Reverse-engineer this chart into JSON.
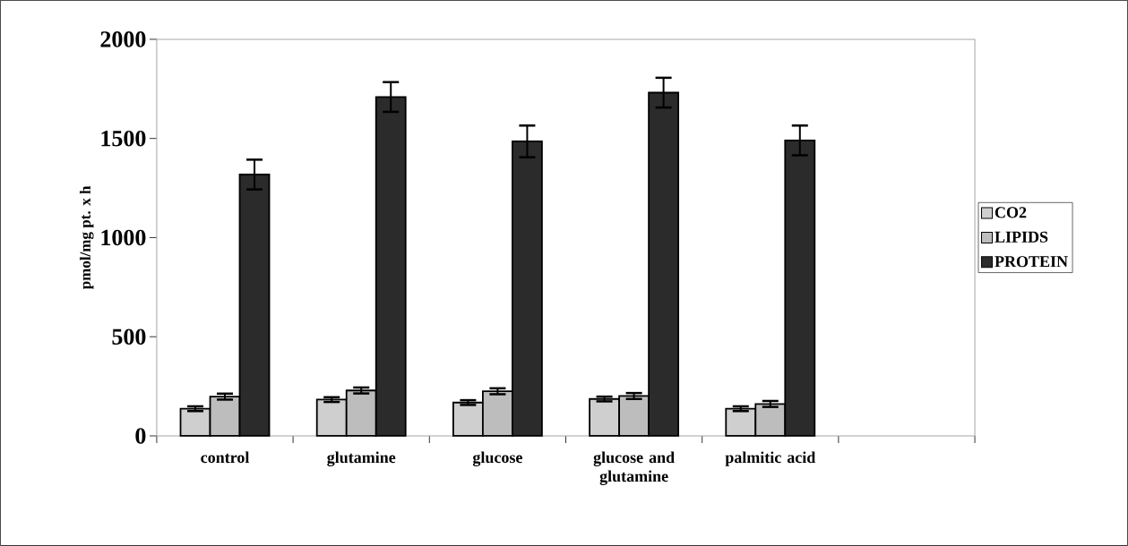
{
  "chart_data": {
    "type": "bar",
    "ylabel": "pmol/mg pt. x h",
    "categories": [
      "control",
      "glutamine",
      "glucose",
      "glucose and glutamine",
      "palmitic acid",
      null
    ],
    "series": [
      {
        "name": "CO2",
        "color": "#cfcfcf",
        "values": [
          137,
          183,
          168,
          186,
          137,
          null
        ],
        "errors": [
          12,
          12,
          12,
          12,
          12,
          null
        ]
      },
      {
        "name": "LIPIDS",
        "color": "#bdbdbd",
        "values": [
          198,
          229,
          225,
          201,
          161,
          null
        ],
        "errors": [
          15,
          15,
          15,
          15,
          15,
          null
        ]
      },
      {
        "name": "PROTEIN",
        "color": "#2b2b2b",
        "values": [
          1318,
          1709,
          1485,
          1731,
          1490,
          null
        ],
        "errors": [
          75,
          75,
          80,
          75,
          75,
          null
        ]
      }
    ],
    "ylim": [
      0,
      2000
    ],
    "yticks": [
      0,
      500,
      1000,
      1500,
      2000
    ],
    "legend": "right"
  }
}
